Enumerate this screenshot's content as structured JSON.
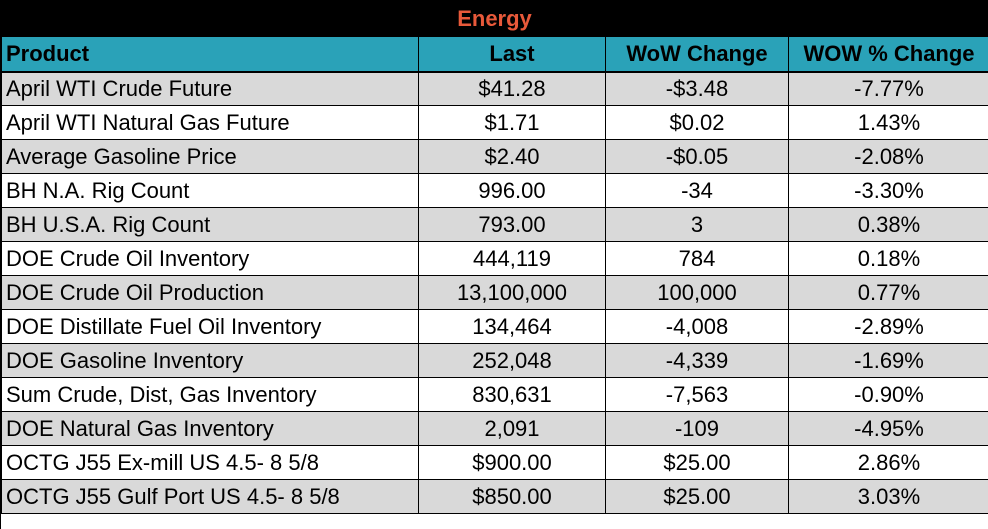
{
  "title": "Energy",
  "colors": {
    "title_bg": "#000000",
    "title_text": "#e8593a",
    "header_bg": "#2aa2b8",
    "row_shade": "#d9d9d9",
    "row_plain": "#ffffff"
  },
  "columns": [
    "Product",
    "Last",
    "WoW Change",
    "WOW % Change"
  ],
  "rows": [
    [
      "April WTI Crude Future",
      "$41.28",
      "-$3.48",
      "-7.77%"
    ],
    [
      "April WTI Natural Gas Future",
      "$1.71",
      "$0.02",
      "1.43%"
    ],
    [
      "Average Gasoline Price",
      "$2.40",
      "-$0.05",
      "-2.08%"
    ],
    [
      "BH N.A. Rig Count",
      "996.00",
      "-34",
      "-3.30%"
    ],
    [
      "BH U.S.A. Rig Count",
      "793.00",
      "3",
      "0.38%"
    ],
    [
      "DOE Crude Oil Inventory",
      "444,119",
      "784",
      "0.18%"
    ],
    [
      "DOE Crude Oil Production",
      "13,100,000",
      "100,000",
      "0.77%"
    ],
    [
      "DOE Distillate Fuel Oil Inventory",
      "134,464",
      "-4,008",
      "-2.89%"
    ],
    [
      "DOE Gasoline Inventory",
      "252,048",
      "-4,339",
      "-1.69%"
    ],
    [
      "Sum Crude, Dist, Gas Inventory",
      "830,631",
      "-7,563",
      "-0.90%"
    ],
    [
      "DOE Natural Gas Inventory",
      "2,091",
      "-109",
      "-4.95%"
    ],
    [
      "OCTG J55 Ex-mill US 4.5- 8 5/8",
      "$900.00",
      "$25.00",
      "2.86%"
    ],
    [
      "OCTG J55 Gulf Port US 4.5- 8 5/8",
      "$850.00",
      "$25.00",
      "3.03%"
    ]
  ]
}
